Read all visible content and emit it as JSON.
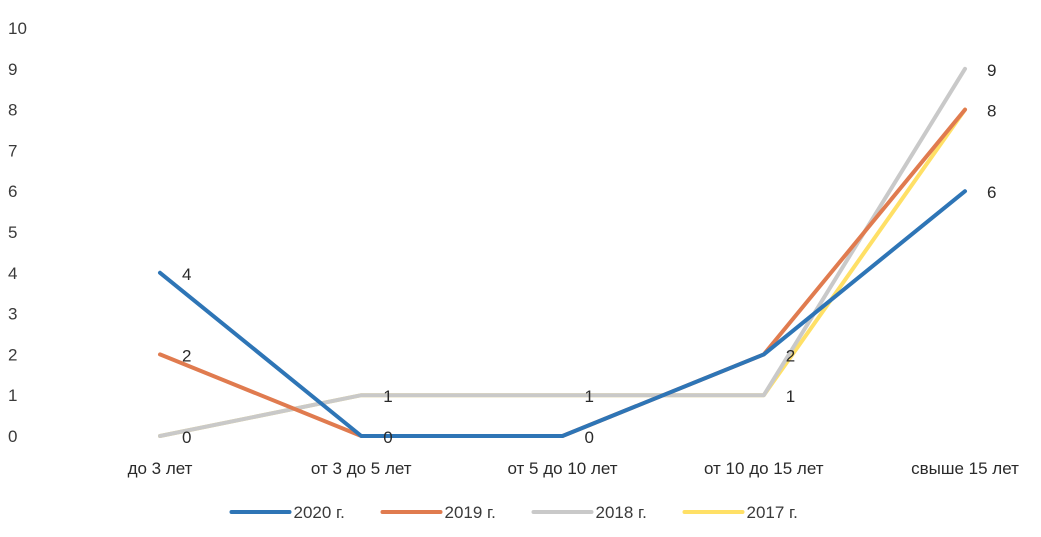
{
  "chart_data": {
    "type": "line",
    "title": "",
    "xlabel": "",
    "ylabel": "",
    "categories": [
      "до 3 лет",
      "от 3 до 5 лет",
      "от 5 до 10 лет",
      "от 10 до 15 лет",
      "свыше 15 лет"
    ],
    "ylim": [
      0,
      10
    ],
    "yticks": [
      "0",
      "1",
      "2",
      "3",
      "4",
      "5",
      "6",
      "7",
      "8",
      "9",
      "10"
    ],
    "grid": false,
    "legend_position": "bottom",
    "series": [
      {
        "name": "2020 г.",
        "color": "#2e75b6",
        "values": [
          4,
          0,
          0,
          2,
          6
        ]
      },
      {
        "name": "2019 г.",
        "color": "#e07b4f",
        "values": [
          2,
          0,
          0,
          2,
          8
        ]
      },
      {
        "name": "2018 г.",
        "color": "#c9c9c9",
        "values": [
          0,
          1,
          1,
          1,
          9
        ]
      },
      {
        "name": "2017 г.",
        "color": "#ffe066",
        "values": [
          0,
          1,
          1,
          1,
          8
        ]
      }
    ],
    "data_labels": [
      {
        "category_index": 0,
        "value": 4,
        "text": "4"
      },
      {
        "category_index": 0,
        "value": 2,
        "text": "2"
      },
      {
        "category_index": 0,
        "value": 0,
        "text": "0"
      },
      {
        "category_index": 1,
        "value": 1,
        "text": "1"
      },
      {
        "category_index": 1,
        "value": 0,
        "text": "0"
      },
      {
        "category_index": 2,
        "value": 1,
        "text": "1"
      },
      {
        "category_index": 2,
        "value": 0,
        "text": "0"
      },
      {
        "category_index": 3,
        "value": 2,
        "text": "2"
      },
      {
        "category_index": 3,
        "value": 1,
        "text": "1"
      },
      {
        "category_index": 4,
        "value": 9,
        "text": "9"
      },
      {
        "category_index": 4,
        "value": 8,
        "text": "8"
      },
      {
        "category_index": 4,
        "value": 6,
        "text": "6"
      }
    ]
  }
}
